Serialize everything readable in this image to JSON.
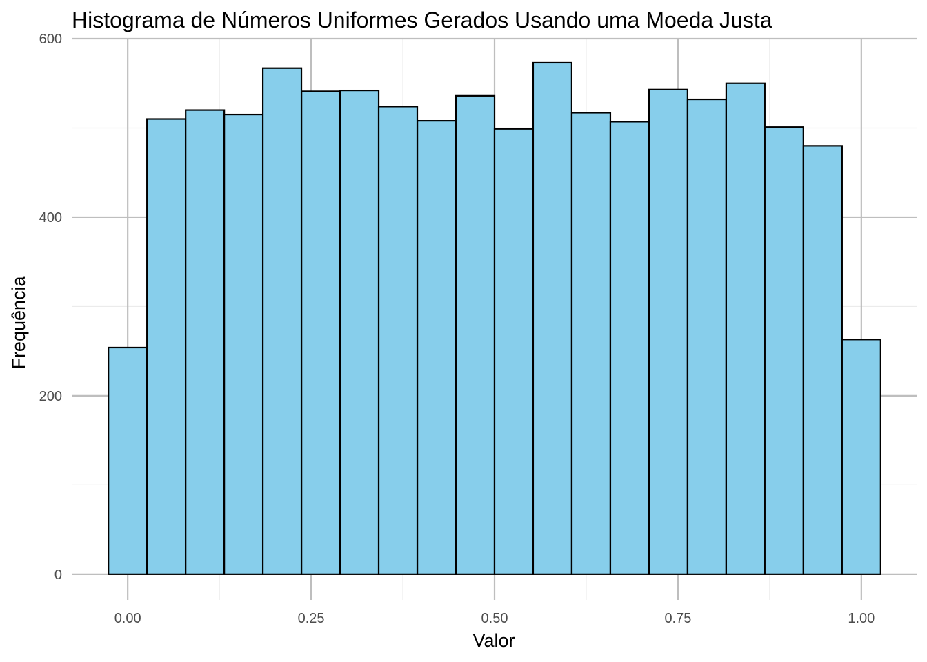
{
  "chart_data": {
    "type": "bar",
    "title": "Histograma de Números Uniformes Gerados Usando uma Moeda Justa",
    "xlabel": "Valor",
    "ylabel": "Frequência",
    "bin_width": 0.0526,
    "bin_centers": [
      0.0,
      0.0526,
      0.1053,
      0.1579,
      0.2105,
      0.2632,
      0.3158,
      0.3684,
      0.4211,
      0.4737,
      0.5263,
      0.5789,
      0.6316,
      0.6842,
      0.7368,
      0.7895,
      0.8421,
      0.8947,
      0.9474,
      1.0
    ],
    "values": [
      254,
      510,
      520,
      515,
      567,
      541,
      542,
      524,
      508,
      536,
      499,
      573,
      517,
      507,
      543,
      532,
      550,
      501,
      480,
      263
    ],
    "xlim": [
      -0.0763,
      1.0763
    ],
    "ylim": [
      -28.7,
      600
    ],
    "x_ticks": [
      0.0,
      0.25,
      0.5,
      0.75,
      1.0
    ],
    "x_tick_labels": [
      "0.00",
      "0.25",
      "0.50",
      "0.75",
      "1.00"
    ],
    "y_ticks": [
      0,
      200,
      400,
      600
    ],
    "y_tick_labels": [
      "0",
      "200",
      "400",
      "600"
    ],
    "bar_fill": "#87ceeb",
    "bar_stroke": "#000000",
    "grid": true
  }
}
